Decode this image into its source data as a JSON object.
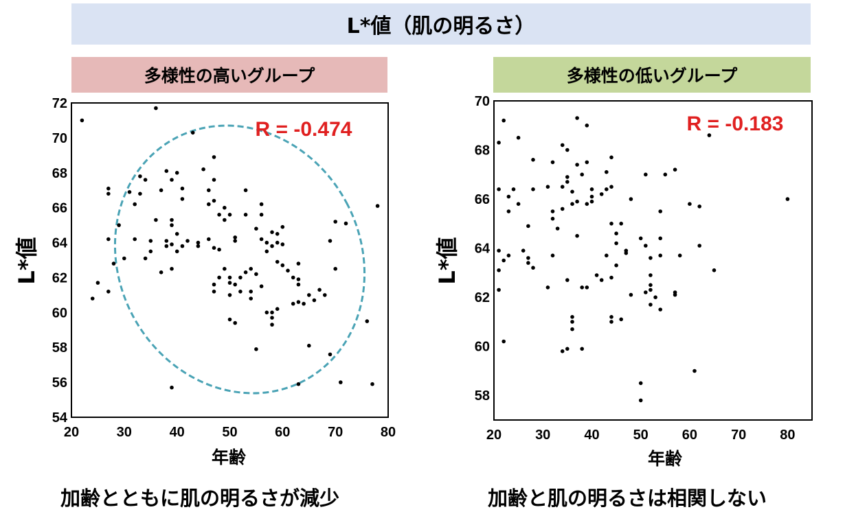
{
  "header": {
    "title": "L*値（肌の明るさ）"
  },
  "panels": [
    {
      "group_label": "多様性の高いグループ",
      "r_text": "R = -0.474",
      "caption": "加齢とともに肌の明るさが減少"
    },
    {
      "group_label": "多様性の低いグループ",
      "r_text": "R = -0.183",
      "caption": "加齢と肌の明るさは相関しない"
    }
  ],
  "colors": {
    "ellipse": "#4aa3b5",
    "r_text": "#e02020",
    "title_bg": "#dae3f3",
    "high_group_bg": "#e6b9b8",
    "low_group_bg": "#c4d79b"
  },
  "chart_data": [
    {
      "type": "scatter",
      "title": "多様性の高いグループ",
      "xlabel": "年齢",
      "ylabel": "L*値",
      "xlim": [
        20,
        80
      ],
      "ylim": [
        54,
        72
      ],
      "xticks": [
        20,
        30,
        40,
        50,
        60,
        70,
        80
      ],
      "yticks": [
        54,
        56,
        58,
        60,
        62,
        64,
        66,
        68,
        70,
        72
      ],
      "annotation": "R = -0.474",
      "highlight": "dashed ellipse",
      "points": [
        [
          22,
          71.0
        ],
        [
          24,
          60.8
        ],
        [
          25,
          61.7
        ],
        [
          27,
          67.1
        ],
        [
          27,
          66.8
        ],
        [
          27,
          64.2
        ],
        [
          27,
          61.2
        ],
        [
          28,
          62.8
        ],
        [
          29,
          65.0
        ],
        [
          30,
          63.1
        ],
        [
          31,
          66.9
        ],
        [
          32,
          66.2
        ],
        [
          32,
          64.2
        ],
        [
          33,
          67.8
        ],
        [
          33,
          66.8
        ],
        [
          34,
          63.1
        ],
        [
          34,
          67.6
        ],
        [
          35,
          63.5
        ],
        [
          35,
          64.1
        ],
        [
          36,
          71.7
        ],
        [
          36,
          65.3
        ],
        [
          37,
          67.0
        ],
        [
          37,
          62.3
        ],
        [
          38,
          68.1
        ],
        [
          38,
          64.1
        ],
        [
          38,
          63.8
        ],
        [
          39,
          67.6
        ],
        [
          39,
          65.0
        ],
        [
          39,
          65.3
        ],
        [
          39,
          63.9
        ],
        [
          39,
          62.5
        ],
        [
          39,
          55.7
        ],
        [
          40,
          68.0
        ],
        [
          40,
          64.5
        ],
        [
          40,
          63.5
        ],
        [
          41,
          67.1
        ],
        [
          41,
          66.5
        ],
        [
          41,
          63.8
        ],
        [
          42,
          64.1
        ],
        [
          43,
          70.3
        ],
        [
          44,
          63.8
        ],
        [
          44,
          64.0
        ],
        [
          45,
          68.2
        ],
        [
          46,
          67.0
        ],
        [
          46,
          66.2
        ],
        [
          46,
          64.2
        ],
        [
          47,
          68.9
        ],
        [
          47,
          67.6
        ],
        [
          47,
          66.4
        ],
        [
          47,
          63.7
        ],
        [
          47,
          61.2
        ],
        [
          47,
          61.6
        ],
        [
          48,
          63.6
        ],
        [
          48,
          65.6
        ],
        [
          48,
          62.0
        ],
        [
          49,
          66.0
        ],
        [
          49,
          65.3
        ],
        [
          49,
          62.5
        ],
        [
          50,
          65.6
        ],
        [
          50,
          62.0
        ],
        [
          50,
          61.7
        ],
        [
          50,
          61.0
        ],
        [
          50,
          59.6
        ],
        [
          51,
          64.3
        ],
        [
          51,
          64.1
        ],
        [
          51,
          61.6
        ],
        [
          51,
          59.4
        ],
        [
          52,
          62.0
        ],
        [
          52,
          61.2
        ],
        [
          53,
          65.6
        ],
        [
          53,
          62.3
        ],
        [
          53,
          67.0
        ],
        [
          54,
          61.2
        ],
        [
          54,
          60.8
        ],
        [
          54,
          62.5
        ],
        [
          55,
          64.8
        ],
        [
          55,
          62.2
        ],
        [
          55,
          57.9
        ],
        [
          56,
          66.2
        ],
        [
          56,
          65.6
        ],
        [
          56,
          64.2
        ],
        [
          56,
          61.5
        ],
        [
          57,
          63.5
        ],
        [
          57,
          64.0
        ],
        [
          57,
          60.0
        ],
        [
          58,
          64.6
        ],
        [
          58,
          63.8
        ],
        [
          58,
          60.0
        ],
        [
          58,
          59.7
        ],
        [
          58,
          59.3
        ],
        [
          59,
          64.0
        ],
        [
          59,
          64.5
        ],
        [
          59,
          62.9
        ],
        [
          59,
          60.2
        ],
        [
          60,
          64.9
        ],
        [
          60,
          63.9
        ],
        [
          60,
          62.7
        ],
        [
          61,
          62.4
        ],
        [
          62,
          60.5
        ],
        [
          62,
          62.0
        ],
        [
          63,
          62.8
        ],
        [
          63,
          60.6
        ],
        [
          63,
          61.9
        ],
        [
          63,
          61.6
        ],
        [
          63,
          55.9
        ],
        [
          64,
          60.5
        ],
        [
          65,
          61.0
        ],
        [
          65,
          58.1
        ],
        [
          66,
          60.7
        ],
        [
          67,
          61.3
        ],
        [
          68,
          61.0
        ],
        [
          69,
          64.1
        ],
        [
          69,
          57.6
        ],
        [
          70,
          62.5
        ],
        [
          70,
          65.2
        ],
        [
          71,
          56.0
        ],
        [
          72,
          65.1
        ],
        [
          76,
          59.5
        ],
        [
          77,
          55.9
        ],
        [
          78,
          66.1
        ]
      ]
    },
    {
      "type": "scatter",
      "title": "多様性の低いグループ",
      "xlabel": "年齢",
      "ylabel": "L*値",
      "xlim": [
        20,
        85
      ],
      "ylim": [
        57,
        70
      ],
      "xticks": [
        20,
        30,
        40,
        50,
        60,
        70,
        80
      ],
      "yticks": [
        58,
        60,
        62,
        64,
        66,
        68,
        70
      ],
      "annotation": "R = -0.183",
      "points": [
        [
          21,
          68.3
        ],
        [
          21,
          66.4
        ],
        [
          21,
          63.9
        ],
        [
          21,
          63.1
        ],
        [
          21,
          62.3
        ],
        [
          22,
          69.2
        ],
        [
          22,
          63.5
        ],
        [
          22,
          60.2
        ],
        [
          23,
          66.1
        ],
        [
          23,
          65.5
        ],
        [
          23,
          63.7
        ],
        [
          24,
          66.4
        ],
        [
          25,
          68.5
        ],
        [
          25,
          65.8
        ],
        [
          26,
          63.9
        ],
        [
          27,
          64.9
        ],
        [
          27,
          63.6
        ],
        [
          27,
          63.4
        ],
        [
          28,
          67.6
        ],
        [
          28,
          66.4
        ],
        [
          28,
          63.2
        ],
        [
          31,
          66.5
        ],
        [
          31,
          62.4
        ],
        [
          32,
          67.5
        ],
        [
          32,
          65.5
        ],
        [
          32,
          65.2
        ],
        [
          32,
          63.7
        ],
        [
          33,
          64.8
        ],
        [
          34,
          68.2
        ],
        [
          34,
          66.5
        ],
        [
          34,
          65.6
        ],
        [
          34,
          59.8
        ],
        [
          35,
          68.0
        ],
        [
          35,
          66.9
        ],
        [
          35,
          66.7
        ],
        [
          35,
          62.7
        ],
        [
          35,
          59.9
        ],
        [
          36,
          65.8
        ],
        [
          36,
          66.3
        ],
        [
          36,
          61.2
        ],
        [
          36,
          61.0
        ],
        [
          36,
          60.7
        ],
        [
          37,
          69.3
        ],
        [
          37,
          67.4
        ],
        [
          37,
          65.9
        ],
        [
          37,
          64.5
        ],
        [
          38,
          67.0
        ],
        [
          38,
          62.4
        ],
        [
          38,
          59.9
        ],
        [
          39,
          69.0
        ],
        [
          39,
          67.5
        ],
        [
          39,
          65.8
        ],
        [
          39,
          62.4
        ],
        [
          40,
          66.4
        ],
        [
          40,
          66.1
        ],
        [
          40,
          65.9
        ],
        [
          41,
          62.9
        ],
        [
          42,
          66.2
        ],
        [
          42,
          62.7
        ],
        [
          43,
          67.1
        ],
        [
          43,
          66.4
        ],
        [
          43,
          63.7
        ],
        [
          44,
          67.7
        ],
        [
          44,
          66.5
        ],
        [
          44,
          65.0
        ],
        [
          44,
          62.8
        ],
        [
          44,
          61.2
        ],
        [
          44,
          61.0
        ],
        [
          45,
          64.6
        ],
        [
          45,
          64.2
        ],
        [
          45,
          63.3
        ],
        [
          46,
          65.0
        ],
        [
          46,
          61.1
        ],
        [
          47,
          63.9
        ],
        [
          47,
          63.8
        ],
        [
          48,
          66.0
        ],
        [
          48,
          62.1
        ],
        [
          50,
          64.4
        ],
        [
          50,
          58.5
        ],
        [
          50,
          57.8
        ],
        [
          51,
          67.0
        ],
        [
          51,
          64.1
        ],
        [
          51,
          62.2
        ],
        [
          52,
          63.6
        ],
        [
          52,
          62.9
        ],
        [
          52,
          62.5
        ],
        [
          52,
          62.3
        ],
        [
          52,
          61.7
        ],
        [
          53,
          62.0
        ],
        [
          54,
          65.5
        ],
        [
          54,
          64.4
        ],
        [
          54,
          63.7
        ],
        [
          54,
          61.5
        ],
        [
          55,
          67.0
        ],
        [
          57,
          67.2
        ],
        [
          57,
          62.2
        ],
        [
          57,
          62.1
        ],
        [
          58,
          63.7
        ],
        [
          60,
          65.8
        ],
        [
          61,
          59.0
        ],
        [
          62,
          65.7
        ],
        [
          62,
          64.1
        ],
        [
          64,
          68.6
        ],
        [
          65,
          63.1
        ],
        [
          80,
          66.0
        ]
      ]
    }
  ]
}
